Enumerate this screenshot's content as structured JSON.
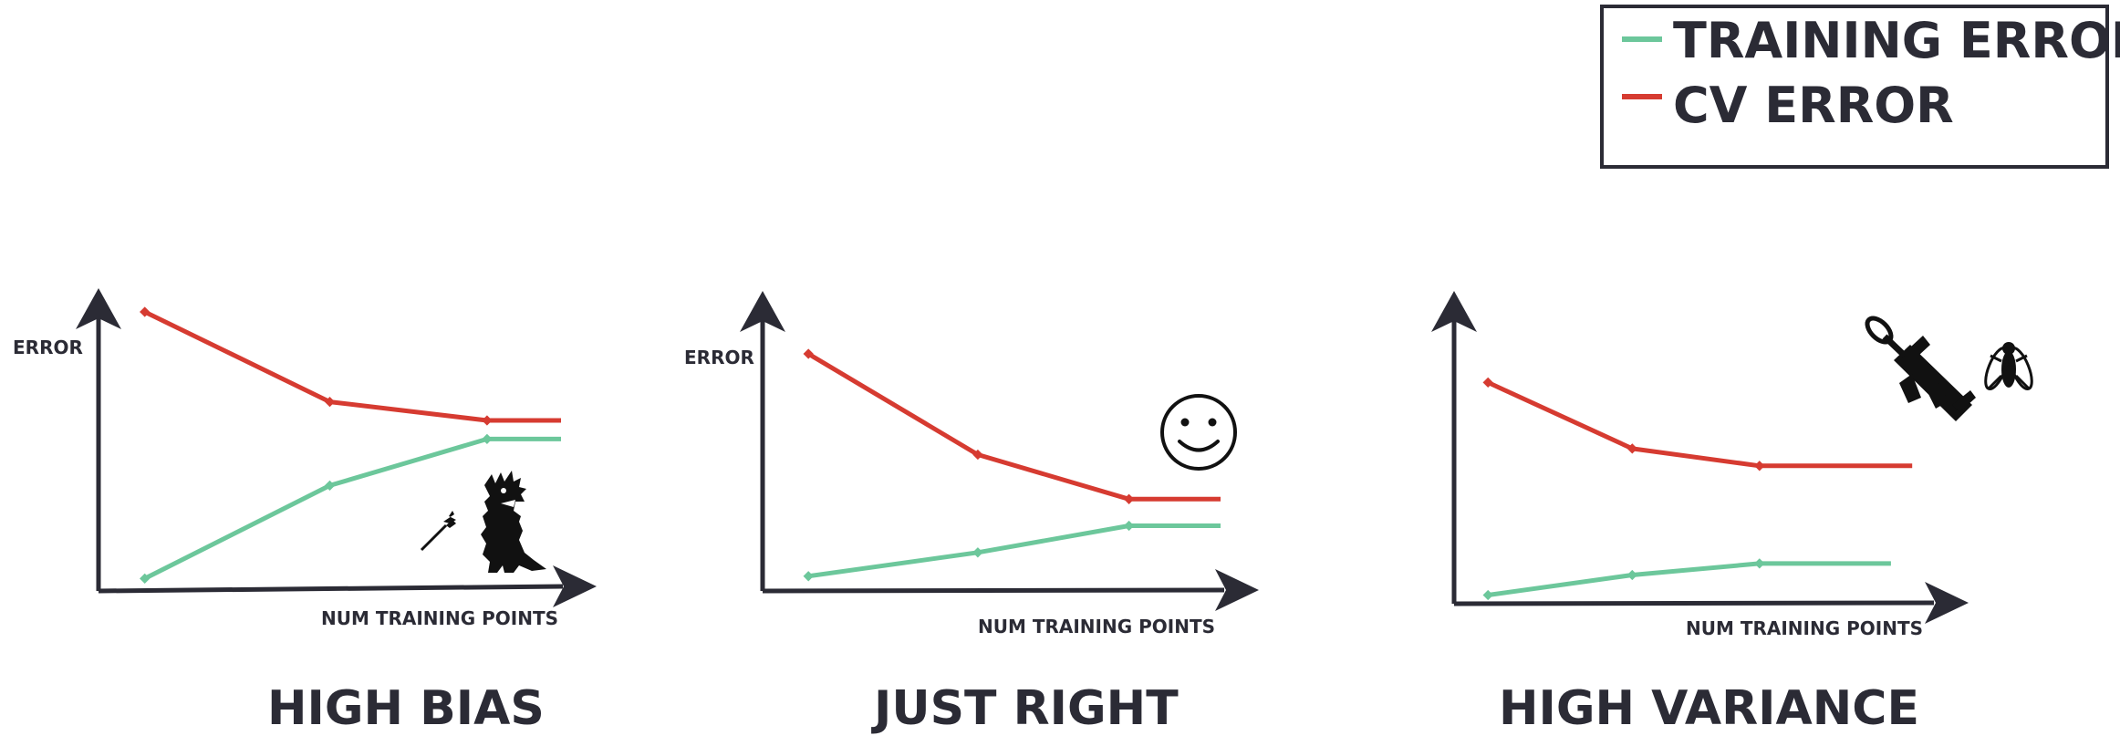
{
  "legend": {
    "position": "top-right",
    "items": [
      {
        "label": "TRAINING ERROR",
        "color": "#6cc79b"
      },
      {
        "label": "CV ERROR",
        "color": "#d63b31"
      }
    ]
  },
  "colors": {
    "axis": "#2b2b35",
    "training": "#6cc79b",
    "cv": "#d63b31"
  },
  "chart_data": [
    {
      "type": "line",
      "title": "HIGH BIAS",
      "xlabel": "NUM TRAINING POINTS",
      "ylabel": "ERROR",
      "icons": [
        "dart-icon",
        "monster-icon"
      ],
      "series": [
        {
          "key": "cv",
          "x": [
            0.1,
            0.5,
            0.84,
            1.0
          ],
          "y": [
            0.9,
            0.61,
            0.55,
            0.55
          ]
        },
        {
          "key": "training",
          "x": [
            0.1,
            0.5,
            0.84,
            1.0
          ],
          "y": [
            0.04,
            0.34,
            0.49,
            0.49
          ]
        }
      ]
    },
    {
      "type": "line",
      "title": "JUST RIGHT",
      "xlabel": "NUM TRAINING POINTS",
      "ylabel": "ERROR",
      "icons": [
        "smiley-icon"
      ],
      "series": [
        {
          "key": "cv",
          "x": [
            0.1,
            0.47,
            0.8,
            1.0
          ],
          "y": [
            0.8,
            0.46,
            0.31,
            0.31
          ]
        },
        {
          "key": "training",
          "x": [
            0.1,
            0.47,
            0.8,
            1.0
          ],
          "y": [
            0.05,
            0.13,
            0.22,
            0.22
          ]
        }
      ]
    },
    {
      "type": "line",
      "title": "HIGH VARIANCE",
      "xlabel": "NUM TRAINING POINTS",
      "ylabel": "",
      "icons": [
        "bazooka-icon",
        "fly-icon"
      ],
      "series": [
        {
          "key": "cv",
          "x": [
            0.08,
            0.42,
            0.72,
            1.08
          ],
          "y": [
            0.77,
            0.54,
            0.48,
            0.48
          ]
        },
        {
          "key": "training",
          "x": [
            0.08,
            0.42,
            0.72,
            1.03
          ],
          "y": [
            0.03,
            0.1,
            0.14,
            0.14
          ]
        }
      ]
    }
  ]
}
